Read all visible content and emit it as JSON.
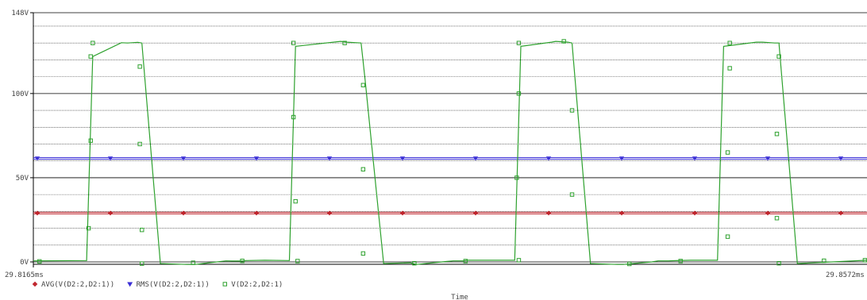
{
  "chart_data": {
    "type": "line",
    "title": "",
    "xlabel": "Time",
    "ylabel": "",
    "xlim_ms": [
      29.8165,
      29.8572
    ],
    "ylim": [
      -2,
      148
    ],
    "x_tick_labels": [
      "29.8165ms",
      "29.8572ms"
    ],
    "y_ticks": [
      0,
      50,
      100,
      148
    ],
    "y_tick_labels": [
      "0V",
      "50V",
      "100V",
      "148V"
    ],
    "grid": true,
    "legend_position": "bottom-left",
    "series": [
      {
        "name": "AVG(V(D2:2,D2:1))",
        "color": "#c0262e",
        "marker": "diamond",
        "style": "constant",
        "x": [
          29.8165,
          29.8572
        ],
        "y": [
          29.0,
          29.0
        ]
      },
      {
        "name": "RMS(V(D2:2,D2:1))",
        "color": "#3b2fd6",
        "marker": "triangle-down",
        "style": "constant",
        "x": [
          29.8165,
          29.8572
        ],
        "y": [
          61.5,
          61.5
        ]
      },
      {
        "name": "V(D2:2,D2:1)",
        "color": "#2ea12e",
        "marker": "square",
        "style": "waveform",
        "x": [
          29.8165,
          29.8191,
          29.8194,
          29.8208,
          29.8211,
          29.8216,
          29.8218,
          29.8227,
          29.824,
          29.8244,
          29.8259,
          29.8262,
          29.8267,
          29.8269,
          29.8278,
          29.829,
          29.8293,
          29.8315,
          29.8318,
          29.8325,
          29.8327,
          29.8336,
          29.8349,
          29.8352,
          29.8367,
          29.837,
          29.8375,
          29.8377,
          29.8386,
          29.84,
          29.8403,
          29.8418,
          29.842,
          29.8426,
          29.8428,
          29.8437,
          29.845,
          29.8453,
          29.8467,
          29.847,
          29.8475,
          29.8477,
          29.8486,
          29.8499,
          29.8502,
          29.8518,
          29.8521,
          29.8527,
          29.8529,
          29.8538,
          29.8572
        ],
        "y": [
          0.6,
          0.8,
          122.0,
          130.2,
          130.0,
          130.4,
          130.0,
          -1.0,
          -1.5,
          -1.5,
          0.6,
          0.5,
          0.5,
          0.8,
          1.0,
          0.8,
          128.0,
          131.0,
          130.5,
          130.0,
          108.0,
          -1.0,
          -0.5,
          -1.5,
          0.3,
          0.6,
          0.6,
          1.0,
          1.0,
          1.0,
          128.0,
          130.5,
          131.0,
          130.5,
          130.0,
          -1.0,
          -1.5,
          -1.5,
          0.0,
          0.6,
          0.6,
          0.7,
          1.0,
          1.0,
          128.0,
          130.5,
          130.5,
          130.0,
          130.0,
          -1.0,
          1.0
        ]
      }
    ]
  }
}
